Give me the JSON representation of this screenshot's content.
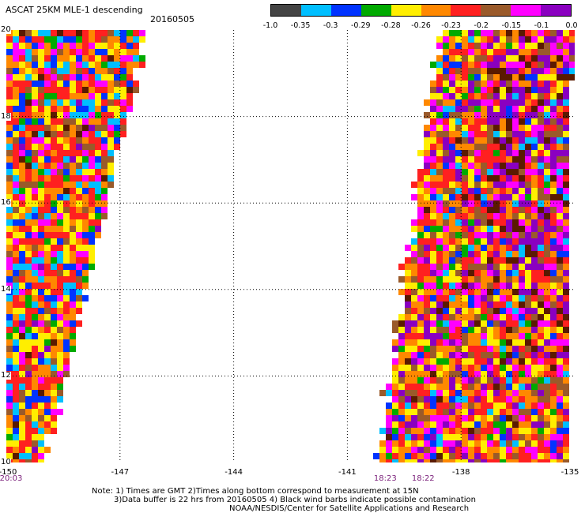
{
  "header": {
    "title": "ASCAT 25KM MLE-1 descending",
    "date": "20160505"
  },
  "legend": {
    "colors": [
      "#444444",
      "#00bfff",
      "#0033ff",
      "#00aa00",
      "#ffee00",
      "#ff8800",
      "#ff2020",
      "#9a5a2a",
      "#ff00ff",
      "#8a00c0"
    ],
    "ticks": [
      "-1.0",
      "-0.35",
      "-0.3",
      "-0.29",
      "-0.28",
      "-0.26",
      "-0.23",
      "-0.2",
      "-0.15",
      "-0.1",
      "0.0"
    ]
  },
  "map": {
    "lon_labels": [
      "-150",
      "-147",
      "-144",
      "-141",
      "-138",
      "-135"
    ],
    "lat_labels": [
      "20",
      "18",
      "16",
      "14",
      "12",
      "10"
    ],
    "lon_range": [
      -150,
      -135
    ],
    "lat_range": [
      10,
      20
    ],
    "grid_lons": [
      -147,
      -144,
      -141,
      -138
    ],
    "grid_lats": [
      12,
      14,
      16,
      18
    ],
    "swath_colors": [
      "#ff2020",
      "#ff8800",
      "#ffee00",
      "#ff00ff",
      "#9a5a2a",
      "#00aa00",
      "#0033ff",
      "#00bfff",
      "#8a00c0",
      "#5a1a00"
    ],
    "time_labels": [
      {
        "text": "20:03",
        "lon": -150
      },
      {
        "text": "18:23",
        "lon": -140.0
      },
      {
        "text": "18:22",
        "lon": -139.0
      }
    ]
  },
  "notes": {
    "line1": "Note: 1) Times are GMT 2)Times along bottom correspond to measurement at 15N",
    "line2": "3)Data buffer is 22 hrs from 20160505 4) Black wind barbs indicate possible contamination",
    "line3": "NOAA/NESDIS/Center for Satellite Applications and Research"
  }
}
